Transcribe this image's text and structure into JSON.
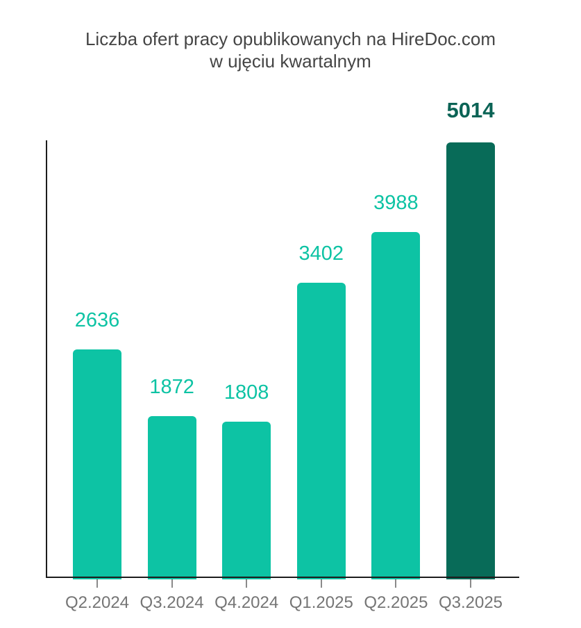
{
  "title": {
    "line1": "Liczba ofert pracy opublikowanych na HireDoc.com",
    "line2": "w ujęciu kwartalnym"
  },
  "chart_data": {
    "type": "bar",
    "title": "Liczba ofert pracy opublikowanych na HireDoc.com w ujęciu kwartalnym",
    "categories": [
      "Q2.2024",
      "Q3.2024",
      "Q4.2024",
      "Q1.2025",
      "Q2.2025",
      "Q3.2025"
    ],
    "values": [
      2636,
      1872,
      1808,
      3402,
      3988,
      5014
    ],
    "xlabel": "",
    "ylabel": "",
    "ylim": [
      0,
      5014
    ],
    "grid": false,
    "legend": false,
    "value_labels_shown": true,
    "highlight_index": 5,
    "bar_colors": [
      "#0dc3a4",
      "#0dc3a4",
      "#0dc3a4",
      "#0dc3a4",
      "#0dc3a4",
      "#086b58"
    ],
    "value_label_colors": [
      "#0dc3a4",
      "#0dc3a4",
      "#0dc3a4",
      "#0dc3a4",
      "#0dc3a4",
      "#0a6355"
    ],
    "colors": {
      "bar_teal": "#0dc3a4",
      "bar_dark": "#086b58",
      "value_label_teal": "#0dc3a4",
      "value_label_dark": "#0a6355",
      "title_text": "#454545",
      "category_label": "#757575",
      "axis_line": "#1c1c1c",
      "tick": "#8a8a8a",
      "background": "#ffffff"
    }
  }
}
